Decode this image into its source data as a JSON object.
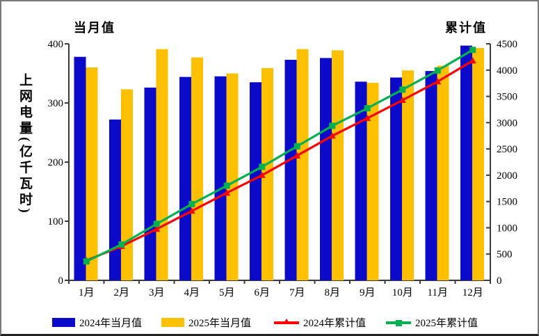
{
  "chart_data": {
    "type": "bar",
    "subtype": "grouped-bars-with-cumulative-lines",
    "axis_titles": {
      "left": "当月值",
      "right": "累计值"
    },
    "y_axis_label": "上网电量(亿千瓦时)",
    "categories": [
      "1月",
      "2月",
      "3月",
      "4月",
      "5月",
      "6月",
      "7月",
      "8月",
      "9月",
      "10月",
      "11月",
      "12月"
    ],
    "left_axis": {
      "min": 0,
      "max": 400,
      "step": 100,
      "tick_labels": [
        "0",
        "100",
        "200",
        "300",
        "400"
      ]
    },
    "right_axis": {
      "min": 0,
      "max": 4500,
      "step": 500,
      "tick_labels": [
        "0",
        "500",
        "1000",
        "1500",
        "2000",
        "2500",
        "3000",
        "3500",
        "4000",
        "4500"
      ]
    },
    "grid": "off",
    "legend_position": "bottom",
    "series": [
      {
        "name": "2024年当月值",
        "type": "bar",
        "axis": "left",
        "color": "#0a0ac8",
        "values": [
          378,
          272,
          326,
          344,
          345,
          335,
          373,
          376,
          336,
          343,
          354,
          397
        ]
      },
      {
        "name": "2025年当月值",
        "type": "bar",
        "axis": "left",
        "color": "#ffc000",
        "values": [
          360,
          323,
          391,
          377,
          350,
          359,
          391,
          389,
          334,
          355,
          363,
          393
        ]
      },
      {
        "name": "2024年累计值",
        "type": "line",
        "axis": "right",
        "color": "#ff0000",
        "marker": "triangle",
        "values": [
          378,
          650,
          976,
          1320,
          1665,
          2000,
          2373,
          2749,
          3085,
          3428,
          3782,
          4179
        ]
      },
      {
        "name": "2025年累计值",
        "type": "line",
        "axis": "right",
        "color": "#00b050",
        "marker": "square",
        "values": [
          360,
          683,
          1074,
          1451,
          1801,
          2160,
          2551,
          2940,
          3274,
          3629,
          3992,
          4385
        ]
      }
    ],
    "colors": {
      "axis_line": "#3a3a3a",
      "text": "#000000",
      "frame": "#787878"
    }
  }
}
